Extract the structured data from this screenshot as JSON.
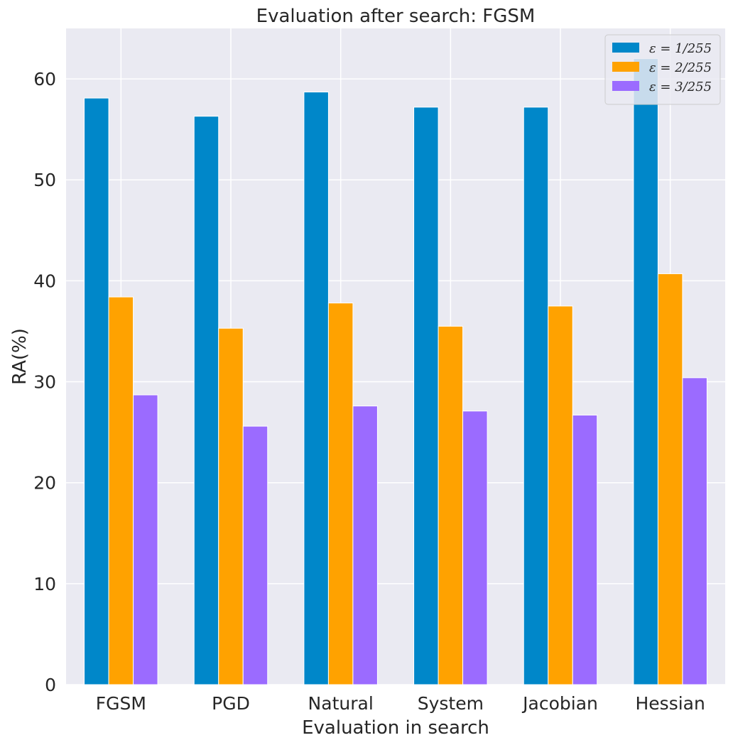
{
  "chart_data": {
    "type": "bar",
    "title": "Evaluation after search: FGSM",
    "xlabel": "Evaluation in search",
    "ylabel": "RA(%)",
    "ylim": [
      0,
      65
    ],
    "yticks": [
      0,
      10,
      20,
      30,
      40,
      50,
      60
    ],
    "categories": [
      "FGSM",
      "PGD",
      "Natural",
      "System",
      "Jacobian",
      "Hessian"
    ],
    "series": [
      {
        "name": "ε = 1/255",
        "color": "#0087c9",
        "values": [
          58.1,
          56.3,
          58.7,
          57.2,
          57.2,
          62.0
        ]
      },
      {
        "name": "ε = 2/255",
        "color": "#ffa200",
        "values": [
          38.4,
          35.3,
          37.8,
          35.5,
          37.5,
          40.7
        ]
      },
      {
        "name": "ε = 3/255",
        "color": "#9b6bff",
        "values": [
          28.7,
          25.6,
          27.6,
          27.1,
          26.7,
          30.4
        ]
      }
    ],
    "grid": true,
    "legend_position": "top-right",
    "background": "#eaeaf2"
  }
}
